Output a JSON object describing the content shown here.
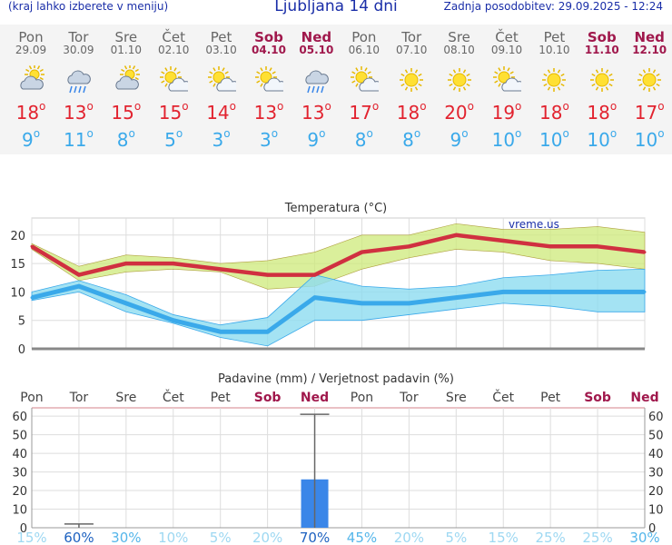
{
  "header": {
    "left_note": "(kraj lahko izberete v meniju)",
    "title": "Ljubljana 14 dni",
    "updated": "Zadnja posodobitev: 29.09.2025 - 12:24"
  },
  "days": [
    {
      "name": "Pon",
      "date": "29.09",
      "icon": "partly-cloudy-icon",
      "tmax": "18",
      "tmin": "9",
      "weekend": false
    },
    {
      "name": "Tor",
      "date": "30.09",
      "icon": "cloud-rain-icon",
      "tmax": "13",
      "tmin": "11",
      "weekend": false
    },
    {
      "name": "Sre",
      "date": "01.10",
      "icon": "partly-cloudy-icon",
      "tmax": "15",
      "tmin": "8",
      "weekend": false
    },
    {
      "name": "Čet",
      "date": "02.10",
      "icon": "sun-cloud-icon",
      "tmax": "15",
      "tmin": "5",
      "weekend": false
    },
    {
      "name": "Pet",
      "date": "03.10",
      "icon": "sun-cloud-icon",
      "tmax": "14",
      "tmin": "3",
      "weekend": false
    },
    {
      "name": "Sob",
      "date": "04.10",
      "icon": "sun-cloud-icon",
      "tmax": "13",
      "tmin": "3",
      "weekend": true
    },
    {
      "name": "Ned",
      "date": "05.10",
      "icon": "cloud-rain-icon",
      "tmax": "13",
      "tmin": "9",
      "weekend": true
    },
    {
      "name": "Pon",
      "date": "06.10",
      "icon": "sun-cloud-icon",
      "tmax": "17",
      "tmin": "8",
      "weekend": false
    },
    {
      "name": "Tor",
      "date": "07.10",
      "icon": "sun-icon",
      "tmax": "18",
      "tmin": "8",
      "weekend": false
    },
    {
      "name": "Sre",
      "date": "08.10",
      "icon": "sun-icon",
      "tmax": "20",
      "tmin": "9",
      "weekend": false
    },
    {
      "name": "Čet",
      "date": "09.10",
      "icon": "sun-cloud-icon",
      "tmax": "19",
      "tmin": "10",
      "weekend": false
    },
    {
      "name": "Pet",
      "date": "10.10",
      "icon": "sun-icon",
      "tmax": "18",
      "tmin": "10",
      "weekend": false
    },
    {
      "name": "Sob",
      "date": "11.10",
      "icon": "sun-icon",
      "tmax": "18",
      "tmin": "10",
      "weekend": true
    },
    {
      "name": "Ned",
      "date": "12.10",
      "icon": "sun-icon",
      "tmax": "17",
      "tmin": "10",
      "weekend": true
    }
  ],
  "colors": {
    "max_line": "#d03040",
    "max_band": "#cde97a",
    "min_line": "#3aa9ea",
    "min_band": "#8ddcf0",
    "precip_bar": "#3a86e8",
    "weekend": "#a0184c"
  },
  "chart_data": [
    {
      "type": "line",
      "title": "Temperatura (°C)",
      "watermark": "vreme.us",
      "categories": [
        "Pon",
        "Tor",
        "Sre",
        "Čet",
        "Pet",
        "Sob",
        "Ned",
        "Pon",
        "Tor",
        "Sre",
        "Čet",
        "Pet",
        "Sob",
        "Ned"
      ],
      "ylim": [
        0,
        23
      ],
      "yticks": [
        0,
        5,
        10,
        15,
        20
      ],
      "grid": true,
      "series": [
        {
          "values": [
            18,
            13,
            15,
            15,
            14,
            13,
            13,
            17,
            18,
            20,
            19,
            18,
            18,
            17
          ],
          "band_low": [
            17.5,
            12,
            13.5,
            14,
            13.5,
            10.5,
            11,
            14,
            16,
            17.5,
            17,
            15.5,
            15,
            14
          ],
          "band_high": [
            18.5,
            14.5,
            16.5,
            16,
            15,
            15.5,
            17,
            20,
            20,
            22,
            21,
            21,
            21.5,
            20.5
          ]
        },
        {
          "values": [
            9,
            11,
            8,
            5,
            3,
            3,
            9,
            8,
            8,
            9,
            10,
            10,
            10,
            10
          ],
          "band_low": [
            8.5,
            10,
            6.5,
            4.5,
            2,
            0.5,
            5,
            5,
            6,
            7,
            8,
            7.5,
            6.5,
            6.5
          ],
          "band_high": [
            10,
            12,
            9.5,
            6,
            4.2,
            5.5,
            13,
            11,
            10.5,
            11,
            12.5,
            13,
            13.8,
            14
          ]
        }
      ]
    },
    {
      "type": "bar",
      "title": "Padavine (mm) / Verjetnost padavin (%)",
      "categories": [
        "Pon",
        "Tor",
        "Sre",
        "Čet",
        "Pet",
        "Sob",
        "Ned",
        "Pon",
        "Tor",
        "Sre",
        "Čet",
        "Pet",
        "Sob",
        "Ned"
      ],
      "ylim": [
        0,
        63
      ],
      "yticks": [
        0,
        10,
        20,
        30,
        40,
        50,
        60
      ],
      "grid": true,
      "series": [
        {
          "values": [
            0,
            0,
            0,
            0,
            0,
            0,
            26,
            0,
            0,
            0,
            0,
            0,
            0,
            0
          ]
        }
      ],
      "range_high": [
        0,
        2,
        0,
        0,
        0,
        0,
        61,
        0,
        0,
        0,
        0,
        0,
        0,
        0
      ],
      "probability": [
        "15%",
        "60%",
        "30%",
        "10%",
        "5%",
        "20%",
        "70%",
        "45%",
        "20%",
        "5%",
        "15%",
        "25%",
        "25%",
        "30%"
      ]
    }
  ]
}
